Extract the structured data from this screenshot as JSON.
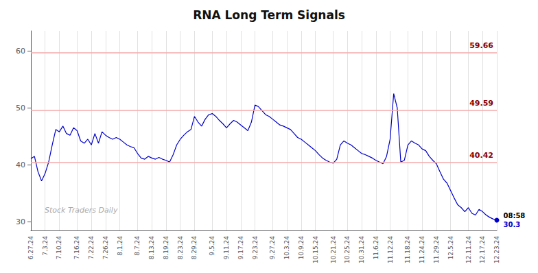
{
  "chart_data": {
    "type": "line",
    "title": "RNA Long Term Signals",
    "categories": [
      "6.27.24",
      null,
      null,
      null,
      "7.3.24",
      null,
      null,
      null,
      "7.10.24",
      null,
      null,
      null,
      null,
      "7.16.24",
      null,
      null,
      null,
      "7.22.24",
      null,
      null,
      null,
      "7.26.24",
      null,
      null,
      null,
      "8.1.24",
      null,
      null,
      null,
      null,
      "8.7.24",
      null,
      null,
      null,
      "8.13.24",
      null,
      null,
      null,
      "8.19.24",
      null,
      null,
      null,
      "8.23.24",
      null,
      null,
      null,
      "8.29.24",
      null,
      null,
      null,
      null,
      "9.5.24",
      null,
      null,
      null,
      "9.11.24",
      null,
      null,
      null,
      "9.17.24",
      null,
      null,
      null,
      "9.23.24",
      null,
      null,
      null,
      null,
      "9.27.24",
      null,
      null,
      null,
      "10.3.24",
      null,
      null,
      null,
      "10.9.24",
      null,
      null,
      null,
      "10.15.24",
      null,
      null,
      null,
      null,
      "10.21.24",
      null,
      null,
      null,
      "10.25.24",
      null,
      null,
      null,
      "10.31.24",
      null,
      null,
      null,
      "11.6.24",
      null,
      null,
      null,
      "11.12.24",
      null,
      null,
      null,
      null,
      "11.18.24",
      null,
      null,
      null,
      "11.24.24",
      null,
      null,
      null,
      "11.29.24",
      null,
      null,
      null,
      "12.5.24",
      null,
      null,
      null,
      null,
      "12.11.24",
      null,
      null,
      null,
      "12.17.24",
      null,
      null,
      null,
      "12.23.24"
    ],
    "values": [
      41.1,
      41.5,
      38.8,
      37.2,
      38.5,
      40.5,
      43.5,
      46.2,
      45.8,
      46.8,
      45.5,
      45.2,
      46.5,
      46.0,
      44.2,
      43.8,
      44.5,
      43.5,
      45.5,
      43.8,
      45.8,
      45.2,
      44.8,
      44.5,
      44.8,
      44.5,
      44.0,
      43.5,
      43.2,
      43.0,
      42.0,
      41.2,
      41.0,
      41.5,
      41.2,
      41.0,
      41.3,
      41.0,
      40.8,
      40.5,
      41.8,
      43.5,
      44.5,
      45.2,
      45.8,
      46.2,
      48.5,
      47.5,
      46.8,
      48.0,
      48.8,
      49.0,
      48.5,
      47.8,
      47.2,
      46.5,
      47.2,
      47.8,
      47.5,
      47.0,
      46.5,
      46.0,
      47.5,
      50.5,
      50.2,
      49.5,
      48.8,
      48.5,
      48.0,
      47.5,
      47.0,
      46.8,
      46.5,
      46.2,
      45.5,
      44.8,
      44.5,
      44.0,
      43.5,
      43.0,
      42.5,
      41.8,
      41.2,
      40.8,
      40.5,
      40.3,
      41.0,
      43.5,
      44.2,
      43.8,
      43.5,
      43.0,
      42.5,
      42.0,
      41.8,
      41.5,
      41.2,
      40.8,
      40.5,
      40.2,
      41.5,
      44.5,
      52.5,
      50.0,
      40.5,
      40.8,
      43.5,
      44.2,
      43.8,
      43.5,
      42.8,
      42.5,
      41.5,
      40.8,
      40.2,
      38.8,
      37.5,
      36.8,
      35.5,
      34.2,
      33.0,
      32.5,
      31.8,
      32.5,
      31.5,
      31.2,
      32.2,
      31.8,
      31.2,
      30.8,
      30.5,
      30.3
    ],
    "color": "#0000cc",
    "reference_lines": [
      {
        "value": 59.66,
        "label": "59.66",
        "color": "#f4aaaa",
        "label_color": "#8b0000"
      },
      {
        "value": 49.59,
        "label": "49.59",
        "color": "#f4aaaa",
        "label_color": "#8b0000"
      },
      {
        "value": 40.42,
        "label": "40.42",
        "color": "#f4aaaa",
        "label_color": "#8b0000"
      }
    ],
    "annotations": [
      "08:58",
      "30.3"
    ],
    "watermark": "Stock Traders Daily",
    "ylim": [
      28.5,
      63.5
    ],
    "yticks": [
      30,
      40,
      50,
      60
    ],
    "grid": "x"
  }
}
